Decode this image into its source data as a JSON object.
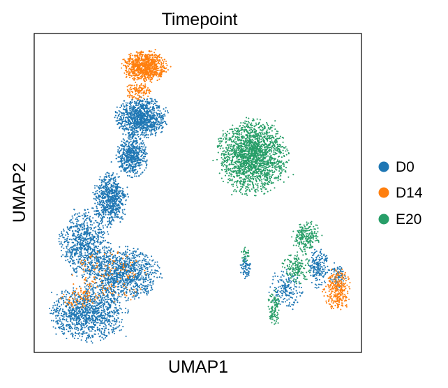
{
  "colors": {
    "D0": "#1f77b4",
    "D14": "#ff7f0e",
    "E20": "#279e68"
  },
  "chart_data": {
    "type": "scatter",
    "title": "Timepoint",
    "xlabel": "UMAP1",
    "ylabel": "UMAP2",
    "ticks": "none",
    "grid": false,
    "legend_position": "right",
    "legend": [
      "D0",
      "D14",
      "E20"
    ],
    "series": [
      {
        "name": "D0",
        "color": "#1f77b4",
        "clusters": [
          {
            "cx": 0.32,
            "cy": 0.745,
            "rx": 0.075,
            "ry": 0.06,
            "n": 1000
          },
          {
            "cx": 0.29,
            "cy": 0.62,
            "rx": 0.045,
            "ry": 0.06,
            "n": 550
          },
          {
            "cx": 0.22,
            "cy": 0.48,
            "rx": 0.05,
            "ry": 0.08,
            "n": 650
          },
          {
            "cx": 0.14,
            "cy": 0.34,
            "rx": 0.07,
            "ry": 0.1,
            "n": 750
          },
          {
            "cx": 0.26,
            "cy": 0.24,
            "rx": 0.11,
            "ry": 0.075,
            "n": 1100
          },
          {
            "cx": 0.15,
            "cy": 0.11,
            "rx": 0.11,
            "ry": 0.08,
            "n": 1100
          },
          {
            "cx": 0.65,
            "cy": 0.26,
            "rx": 0.015,
            "ry": 0.035,
            "n": 70
          },
          {
            "cx": 0.78,
            "cy": 0.19,
            "rx": 0.05,
            "ry": 0.06,
            "n": 180
          },
          {
            "cx": 0.88,
            "cy": 0.26,
            "rx": 0.03,
            "ry": 0.06,
            "n": 180
          },
          {
            "cx": 0.94,
            "cy": 0.23,
            "rx": 0.025,
            "ry": 0.04,
            "n": 80
          }
        ]
      },
      {
        "name": "D14",
        "color": "#ff7f0e",
        "clusters": [
          {
            "cx": 0.33,
            "cy": 0.91,
            "rx": 0.065,
            "ry": 0.045,
            "n": 850
          },
          {
            "cx": 0.31,
            "cy": 0.83,
            "rx": 0.04,
            "ry": 0.025,
            "n": 120
          },
          {
            "cx": 0.94,
            "cy": 0.19,
            "rx": 0.04,
            "ry": 0.06,
            "n": 280
          },
          {
            "cx": 0.21,
            "cy": 0.23,
            "rx": 0.11,
            "ry": 0.08,
            "n": 140
          },
          {
            "cx": 0.12,
            "cy": 0.16,
            "rx": 0.05,
            "ry": 0.03,
            "n": 70
          }
        ]
      },
      {
        "name": "E20",
        "color": "#279e68",
        "clusters": [
          {
            "cx": 0.67,
            "cy": 0.62,
            "rx": 0.1,
            "ry": 0.11,
            "n": 1900
          },
          {
            "cx": 0.84,
            "cy": 0.36,
            "rx": 0.04,
            "ry": 0.045,
            "n": 220
          },
          {
            "cx": 0.81,
            "cy": 0.26,
            "rx": 0.04,
            "ry": 0.05,
            "n": 160
          },
          {
            "cx": 0.74,
            "cy": 0.13,
            "rx": 0.02,
            "ry": 0.055,
            "n": 110
          },
          {
            "cx": 0.65,
            "cy": 0.3,
            "rx": 0.012,
            "ry": 0.025,
            "n": 30
          }
        ]
      }
    ]
  }
}
